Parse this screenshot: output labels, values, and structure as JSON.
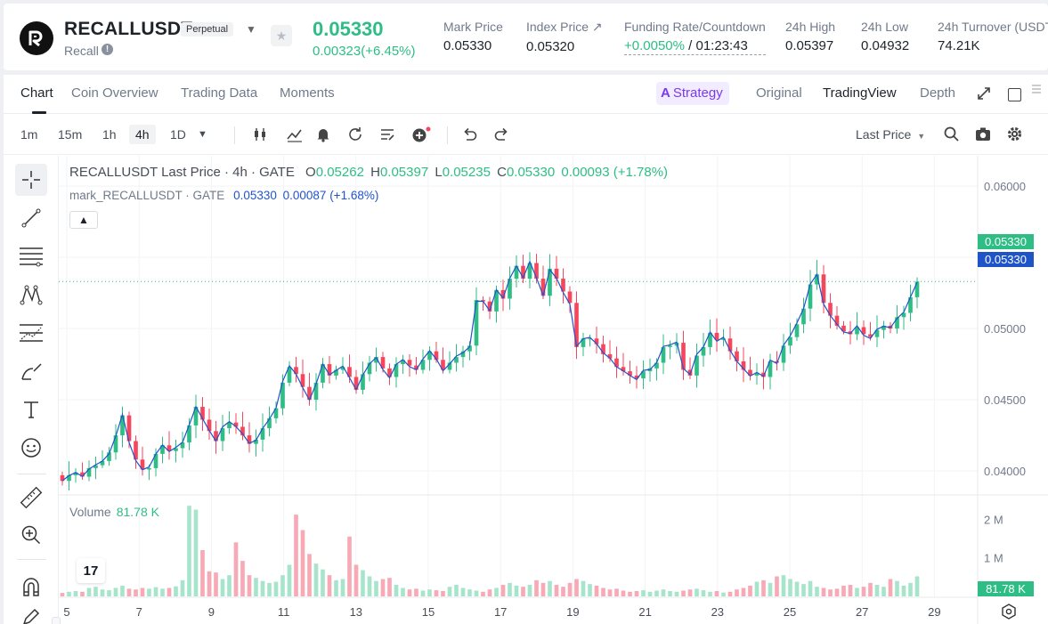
{
  "ticker": {
    "symbol": "RECALLUSDT",
    "contract_type": "Perpetual",
    "coin_name": "Recall",
    "last_price": "0.05330",
    "change": "0.00323(+6.45%)",
    "mark_price_label": "Mark Price",
    "mark_price": "0.05330",
    "index_price_label": "Index Price ↗",
    "index_price": "0.05320",
    "funding_label": "Funding Rate/Countdown",
    "funding_rate": "+0.0050%",
    "countdown": " / 01:23:43",
    "high_label": "24h High",
    "high": "0.05397",
    "low_label": "24h Low",
    "low": "0.04932",
    "turnover_label": "24h Turnover (USDT)",
    "turnover": "74.21K"
  },
  "tabs": [
    "Chart",
    "Coin Overview",
    "Trading Data",
    "Moments"
  ],
  "strategy_label": "Strategy",
  "view_tabs": [
    "Original",
    "TradingView",
    "Depth"
  ],
  "intervals": [
    "1m",
    "15m",
    "1h",
    "4h",
    "1D"
  ],
  "price_type": "Last Price",
  "legend": {
    "title": "RECALLUSDT Last Price · 4h · GATE",
    "o_label": "O",
    "o": "0.05262",
    "h_label": "H",
    "h": "0.05397",
    "l_label": "L",
    "l": "0.05235",
    "c_label": "C",
    "c": "0.05330",
    "delta": "0.00093 (+1.78%)",
    "mark_title": "mark_RECALLUSDT · GATE",
    "mark_value": "0.05330",
    "mark_delta": "0.00087 (+1.68%)"
  },
  "volume_legend": {
    "label": "Volume",
    "value": "81.78 K"
  },
  "tags": {
    "last": "0.05330",
    "mark": "0.05330",
    "volume": "81.78 K"
  },
  "colors": {
    "up": "#2ebd85",
    "down": "#f6465d",
    "mark_line": "#1f54c9",
    "accent": "#7c3aed"
  },
  "icons": [
    "crosshair-icon",
    "trend-line-icon",
    "horizontal-lines-icon",
    "pattern-icon",
    "fib-icon",
    "brush-icon",
    "text-icon",
    "emoji-icon",
    "ruler-icon",
    "zoom-icon",
    "magnet-icon"
  ],
  "chart_data": {
    "type": "candlestick",
    "interval": "4h",
    "y_ticks": [
      "0.06000",
      "0.05500",
      "0.05000",
      "0.04500",
      "0.04000"
    ],
    "ylim": [
      0.03838,
      0.06213
    ],
    "x_ticks": [
      "5",
      "7",
      "9",
      "11",
      "13",
      "15",
      "17",
      "19",
      "21",
      "23",
      "25",
      "27",
      "29"
    ],
    "volume_ticks": [
      "2 M",
      "1 M"
    ],
    "volume_max": 2.4,
    "last_price": 0.0533,
    "mark_price": 0.0533,
    "close_series": [
      0.0393,
      0.0397,
      0.0399,
      0.0396,
      0.0402,
      0.0404,
      0.0407,
      0.0413,
      0.0425,
      0.0439,
      0.0421,
      0.0408,
      0.0401,
      0.0402,
      0.0412,
      0.0418,
      0.0414,
      0.0416,
      0.042,
      0.0432,
      0.0445,
      0.0436,
      0.0428,
      0.0421,
      0.043,
      0.0434,
      0.0431,
      0.0425,
      0.0419,
      0.0422,
      0.043,
      0.0437,
      0.0444,
      0.0462,
      0.0473,
      0.0468,
      0.0459,
      0.045,
      0.0462,
      0.0475,
      0.0467,
      0.0471,
      0.0473,
      0.0466,
      0.0457,
      0.0468,
      0.0476,
      0.048,
      0.0472,
      0.0466,
      0.0475,
      0.0478,
      0.0474,
      0.0471,
      0.0478,
      0.0484,
      0.0478,
      0.0471,
      0.0476,
      0.048,
      0.0484,
      0.0488,
      0.052,
      0.0519,
      0.0512,
      0.0527,
      0.0521,
      0.0535,
      0.0544,
      0.0535,
      0.0546,
      0.0535,
      0.0523,
      0.0542,
      0.0535,
      0.0526,
      0.0518,
      0.0487,
      0.0493,
      0.0493,
      0.0489,
      0.0482,
      0.0479,
      0.0473,
      0.047,
      0.0467,
      0.0465,
      0.047,
      0.0472,
      0.0476,
      0.0487,
      0.0488,
      0.049,
      0.0471,
      0.0467,
      0.0481,
      0.0487,
      0.0497,
      0.0492,
      0.0493,
      0.0484,
      0.0477,
      0.0471,
      0.0467,
      0.0469,
      0.0466,
      0.0477,
      0.0476,
      0.0488,
      0.0494,
      0.0503,
      0.0514,
      0.0531,
      0.0538,
      0.0518,
      0.0509,
      0.0502,
      0.0498,
      0.0496,
      0.0501,
      0.0496,
      0.0494,
      0.0499,
      0.0502,
      0.05,
      0.0508,
      0.0511,
      0.0522,
      0.0533
    ],
    "volume_series": [
      0.09,
      0.12,
      0.14,
      0.12,
      0.22,
      0.25,
      0.18,
      0.16,
      0.22,
      0.28,
      0.2,
      0.18,
      0.22,
      0.2,
      0.24,
      0.2,
      0.22,
      0.26,
      0.42,
      2.35,
      2.25,
      1.2,
      0.65,
      0.62,
      0.45,
      0.55,
      1.4,
      0.92,
      0.55,
      0.48,
      0.4,
      0.35,
      0.38,
      0.55,
      0.82,
      2.12,
      1.72,
      1.1,
      0.85,
      0.7,
      0.55,
      0.42,
      0.45,
      1.55,
      0.82,
      0.68,
      0.52,
      0.4,
      0.45,
      0.48,
      0.3,
      0.22,
      0.18,
      0.2,
      0.15,
      0.18,
      0.16,
      0.14,
      0.25,
      0.3,
      0.22,
      0.18,
      0.15,
      0.12,
      0.18,
      0.22,
      0.3,
      0.35,
      0.28,
      0.25,
      0.3,
      0.42,
      0.35,
      0.4,
      0.3,
      0.25,
      0.35,
      0.45,
      0.4,
      0.32,
      0.28,
      0.22,
      0.18,
      0.2,
      0.15,
      0.12,
      0.14,
      0.16,
      0.12,
      0.15,
      0.18,
      0.14,
      0.12,
      0.15,
      0.18,
      0.2,
      0.16,
      0.12,
      0.14,
      0.1,
      0.12,
      0.18,
      0.22,
      0.28,
      0.38,
      0.42,
      0.35,
      0.52,
      0.55,
      0.45,
      0.38,
      0.32,
      0.4,
      0.25,
      0.22,
      0.18,
      0.2,
      0.28,
      0.3,
      0.22,
      0.25,
      0.35,
      0.3,
      0.25,
      0.45,
      0.4,
      0.28,
      0.35,
      0.52,
      0.12
    ]
  }
}
